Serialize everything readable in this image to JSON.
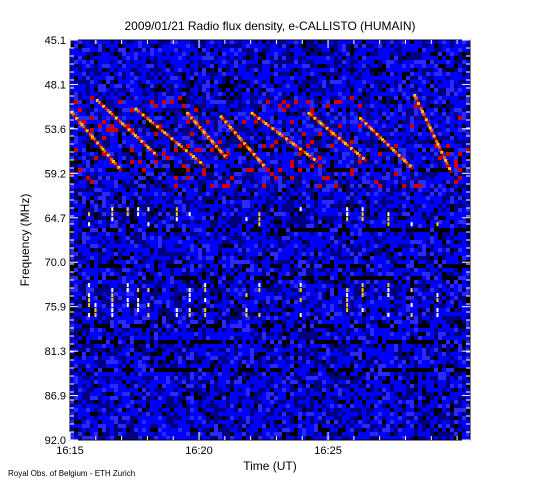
{
  "chart_data": {
    "type": "heatmap",
    "title": "2009/01/21  Radio flux density, e-CALLISTO (HUMAIN)",
    "xlabel": "Time (UT)",
    "ylabel": "Frequency (MHz)",
    "x_ticks": [
      "16:15",
      "16:20",
      "16:25"
    ],
    "y_ticks": [
      "45.1",
      "48.1",
      "53.6",
      "59.2",
      "64.7",
      "70.0",
      "75.9",
      "81.3",
      "86.9",
      "92.0"
    ],
    "y_range_mhz": [
      45.1,
      92.0
    ],
    "x_range_min": [
      0,
      15.5
    ],
    "colormap": [
      "#000000",
      "#000080",
      "#0000ff",
      "#2a2aff",
      "#cc0000",
      "#ff6600",
      "#ffcc00",
      "#ffffff"
    ],
    "bursts": [
      {
        "start_min": 0.0,
        "f_start": 53.6,
        "f_end": 60.3,
        "dur_min": 1.9
      },
      {
        "start_min": 1.0,
        "f_start": 52.2,
        "f_end": 58.6,
        "dur_min": 2.3
      },
      {
        "start_min": 2.5,
        "f_start": 53.2,
        "f_end": 59.7,
        "dur_min": 2.6
      },
      {
        "start_min": 4.5,
        "f_start": 53.7,
        "f_end": 58.9,
        "dur_min": 1.5
      },
      {
        "start_min": 5.8,
        "f_start": 54.1,
        "f_end": 60.0,
        "dur_min": 1.7
      },
      {
        "start_min": 7.0,
        "f_start": 53.7,
        "f_end": 59.3,
        "dur_min": 2.5
      },
      {
        "start_min": 9.2,
        "f_start": 53.7,
        "f_end": 59.2,
        "dur_min": 2.2
      },
      {
        "start_min": 11.2,
        "f_start": 54.3,
        "f_end": 60.1,
        "dur_min": 2.0
      },
      {
        "start_min": 13.3,
        "f_start": 51.6,
        "f_end": 60.5,
        "dur_min": 1.4
      }
    ],
    "grid": false
  },
  "footer": "Royal Obs. of Belgium - ETH Zurich"
}
